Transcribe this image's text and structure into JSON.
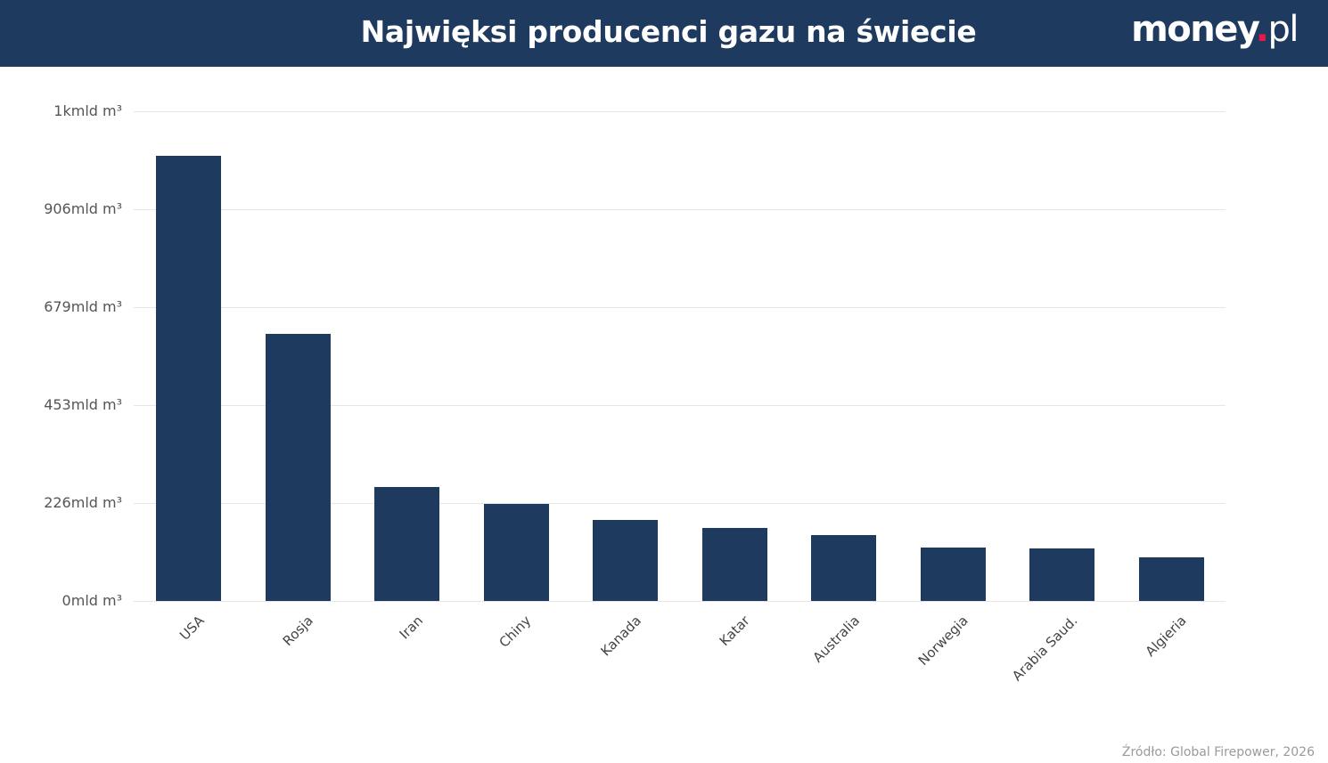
{
  "header": {
    "title": "Najwięksi producenci gazu na świecie",
    "logo": {
      "main": "money",
      "dot": ".",
      "tld": "pl"
    }
  },
  "source": "Źródło: Global Firepower, 2026",
  "colors": {
    "header_bg": "#1f3a5f",
    "bar": "#1f3a5f",
    "logo_dot": "#e8194a"
  },
  "chart_data": {
    "type": "bar",
    "title": "Najwięksi producenci gazu na świecie",
    "xlabel": "",
    "ylabel": "",
    "unit": "mld m³",
    "categories": [
      "USA",
      "Rosja",
      "Iran",
      "Chiny",
      "Kanada",
      "Katar",
      "Australia",
      "Norwegia",
      "Arabia Saud.",
      "Algieria"
    ],
    "values": [
      1030,
      618,
      264,
      225,
      187,
      169,
      152,
      124,
      122,
      101
    ],
    "ylim": [
      0,
      1133
    ],
    "yticks": [
      0,
      226,
      453,
      679,
      906,
      1133
    ],
    "ytick_labels": [
      "0mld m³",
      "226mld m³",
      "453mld m³",
      "679mld m³",
      "906mld m³",
      "1kmld m³"
    ],
    "grid": true,
    "legend": null,
    "x_label_rotation": -45
  }
}
